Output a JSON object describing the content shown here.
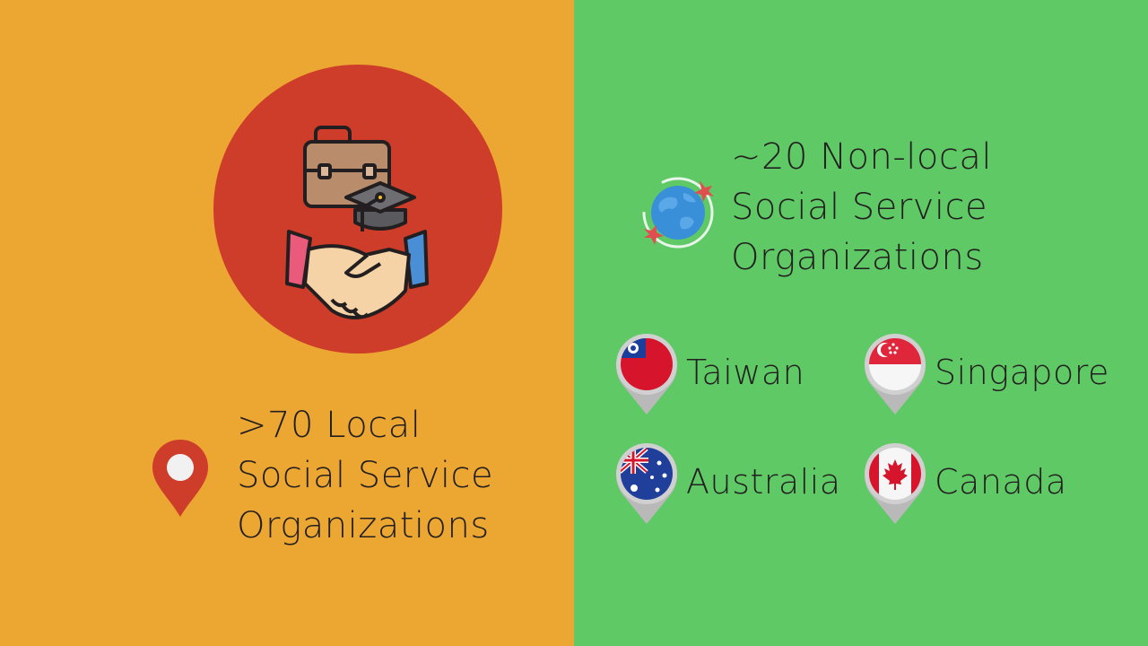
{
  "colors": {
    "left_background": "#eca632",
    "right_background": "#5fc966",
    "circle": "#cd3d29",
    "pin": "#cd3d29",
    "text": "#231f20"
  },
  "local": {
    "icon": "location-pin-icon",
    "lines": [
      ">70 Local",
      "Social Service",
      "Organizations"
    ]
  },
  "nonlocal": {
    "icon": "globe-airplanes-icon",
    "lines": [
      "~20 Non-local",
      "Social Service",
      "Organizations"
    ]
  },
  "countries": [
    {
      "name": "Taiwan",
      "icon": "taiwan-flag-pin-icon"
    },
    {
      "name": "Singapore",
      "icon": "singapore-flag-pin-icon"
    },
    {
      "name": "Australia",
      "icon": "australia-flag-pin-icon"
    },
    {
      "name": "Canada",
      "icon": "canada-flag-pin-icon"
    }
  ],
  "illustration": {
    "icons": [
      "briefcase-icon",
      "graduation-cap-icon",
      "handshake-icon"
    ]
  }
}
